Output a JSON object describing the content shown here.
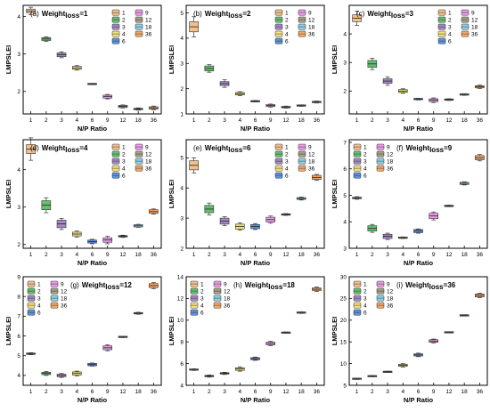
{
  "figure": {
    "xlabel": "N/P Ratio",
    "ylabel": "LMPSLEI",
    "weight_prefix": "Weight",
    "weight_subscript": "loss"
  },
  "legend": {
    "entries": [
      "1",
      "2",
      "3",
      "4",
      "6",
      "9",
      "12",
      "18",
      "36"
    ],
    "colors": [
      "#f4c08a",
      "#63c06d",
      "#a489c8",
      "#f5e17a",
      "#5b94e0",
      "#ee9ae8",
      "#a8a089",
      "#8ed3e8",
      "#f4a868"
    ]
  },
  "chart_data": [
    {
      "type": "box",
      "panel": "(a)",
      "weight": "1",
      "categories": [
        "1",
        "2",
        "3",
        "4",
        "6",
        "9",
        "12",
        "18",
        "36"
      ],
      "values": [
        4.15,
        3.4,
        2.98,
        2.63,
        2.2,
        1.86,
        1.6,
        1.53,
        1.56
      ],
      "spread": [
        0.05,
        0.04,
        0.05,
        0.04,
        0.005,
        0.04,
        0.03,
        0.02,
        0.03
      ],
      "whisker": [
        0.1,
        0.06,
        0.08,
        0.06,
        0.01,
        0.06,
        0.04,
        0.03,
        0.05
      ],
      "ylim": [
        1.4,
        4.3
      ],
      "yticks": [
        2,
        3,
        4
      ],
      "legend_position": "top-right"
    },
    {
      "type": "box",
      "panel": "(b)",
      "weight": "2",
      "categories": [
        "1",
        "2",
        "3",
        "4",
        "6",
        "9",
        "12",
        "18",
        "36"
      ],
      "values": [
        4.45,
        2.8,
        2.2,
        1.8,
        1.5,
        1.33,
        1.27,
        1.33,
        1.47
      ],
      "spread": [
        0.2,
        0.1,
        0.08,
        0.05,
        0.02,
        0.04,
        0.03,
        0.02,
        0.03
      ],
      "whisker": [
        0.4,
        0.15,
        0.15,
        0.08,
        0.03,
        0.06,
        0.04,
        0.03,
        0.04
      ],
      "ylim": [
        1.0,
        5.3
      ],
      "yticks": [
        1,
        2,
        3,
        4,
        5
      ],
      "legend_position": "top-right"
    },
    {
      "type": "box",
      "panel": "(c)",
      "weight": "3",
      "categories": [
        "1",
        "2",
        "3",
        "4",
        "6",
        "9",
        "12",
        "18",
        "36"
      ],
      "values": [
        4.55,
        2.95,
        2.35,
        2.0,
        1.72,
        1.68,
        1.7,
        1.88,
        2.15
      ],
      "spread": [
        0.12,
        0.12,
        0.08,
        0.05,
        0.02,
        0.05,
        0.02,
        0.02,
        0.04
      ],
      "whisker": [
        0.25,
        0.2,
        0.15,
        0.08,
        0.03,
        0.08,
        0.03,
        0.03,
        0.06
      ],
      "ylim": [
        1.2,
        5.0
      ],
      "yticks": [
        2,
        3,
        4
      ],
      "legend_position": "top-right"
    },
    {
      "type": "box",
      "panel": "(d)",
      "weight": "4",
      "categories": [
        "1",
        "2",
        "3",
        "4",
        "6",
        "9",
        "12",
        "18",
        "36"
      ],
      "values": [
        4.55,
        3.05,
        2.55,
        2.28,
        2.08,
        2.12,
        2.22,
        2.5,
        2.88
      ],
      "spread": [
        0.12,
        0.12,
        0.1,
        0.05,
        0.04,
        0.06,
        0.02,
        0.03,
        0.05
      ],
      "whisker": [
        0.3,
        0.2,
        0.15,
        0.08,
        0.06,
        0.1,
        0.03,
        0.04,
        0.07
      ],
      "ylim": [
        1.9,
        4.8
      ],
      "yticks": [
        2,
        3,
        4
      ],
      "legend_position": "top-right"
    },
    {
      "type": "box",
      "panel": "(e)",
      "weight": "6",
      "categories": [
        "1",
        "2",
        "3",
        "4",
        "6",
        "9",
        "12",
        "18",
        "36"
      ],
      "values": [
        4.75,
        3.3,
        2.9,
        2.72,
        2.72,
        2.95,
        3.12,
        3.65,
        4.35
      ],
      "spread": [
        0.15,
        0.12,
        0.1,
        0.08,
        0.07,
        0.08,
        0.02,
        0.03,
        0.07
      ],
      "whisker": [
        0.25,
        0.2,
        0.15,
        0.12,
        0.1,
        0.12,
        0.03,
        0.05,
        0.1
      ],
      "ylim": [
        2.0,
        5.6
      ],
      "yticks": [
        2,
        3,
        4,
        5
      ],
      "legend_position": "top-right"
    },
    {
      "type": "box",
      "panel": "(f)",
      "weight": "9",
      "categories": [
        "1",
        "2",
        "3",
        "4",
        "6",
        "9",
        "12",
        "18",
        "36"
      ],
      "values": [
        4.9,
        3.75,
        3.45,
        3.4,
        3.65,
        4.22,
        4.6,
        5.45,
        6.42
      ],
      "spread": [
        0.03,
        0.1,
        0.08,
        0.02,
        0.06,
        0.1,
        0.02,
        0.04,
        0.08
      ],
      "whisker": [
        0.05,
        0.15,
        0.12,
        0.03,
        0.08,
        0.15,
        0.03,
        0.06,
        0.12
      ],
      "ylim": [
        3.0,
        7.1
      ],
      "yticks": [
        3,
        4,
        5,
        6,
        7
      ],
      "legend_position": "top-left"
    },
    {
      "type": "box",
      "panel": "(g)",
      "weight": "12",
      "categories": [
        "1",
        "2",
        "3",
        "4",
        "6",
        "9",
        "12",
        "18",
        "36"
      ],
      "values": [
        5.1,
        4.1,
        4.0,
        4.1,
        4.55,
        5.4,
        5.95,
        7.15,
        8.55
      ],
      "spread": [
        0.03,
        0.06,
        0.06,
        0.08,
        0.06,
        0.1,
        0.02,
        0.03,
        0.1
      ],
      "whisker": [
        0.05,
        0.1,
        0.1,
        0.12,
        0.08,
        0.15,
        0.03,
        0.05,
        0.15
      ],
      "ylim": [
        3.5,
        9.0
      ],
      "yticks": [
        4,
        5,
        6,
        7,
        8,
        9
      ],
      "legend_position": "top-left"
    },
    {
      "type": "box",
      "panel": "(h)",
      "weight": "18",
      "categories": [
        "1",
        "2",
        "3",
        "4",
        "6",
        "9",
        "12",
        "18",
        "36"
      ],
      "values": [
        5.45,
        4.85,
        5.1,
        5.5,
        6.45,
        7.85,
        8.85,
        10.7,
        12.85
      ],
      "spread": [
        0.05,
        0.06,
        0.06,
        0.12,
        0.1,
        0.12,
        0.04,
        0.05,
        0.12
      ],
      "whisker": [
        0.08,
        0.1,
        0.1,
        0.2,
        0.15,
        0.2,
        0.06,
        0.08,
        0.2
      ],
      "ylim": [
        4.0,
        14.0
      ],
      "yticks": [
        4,
        6,
        8,
        10,
        12,
        14
      ],
      "legend_position": "top-left"
    },
    {
      "type": "box",
      "panel": "(i)",
      "weight": "36",
      "categories": [
        "1",
        "2",
        "3",
        "4",
        "6",
        "9",
        "12",
        "18",
        "36"
      ],
      "values": [
        6.5,
        7.1,
        8.1,
        9.6,
        12.0,
        15.2,
        17.2,
        21.1,
        25.7
      ],
      "spread": [
        0.1,
        0.1,
        0.1,
        0.25,
        0.25,
        0.3,
        0.08,
        0.1,
        0.35
      ],
      "whisker": [
        0.15,
        0.15,
        0.15,
        0.4,
        0.4,
        0.45,
        0.12,
        0.15,
        0.5
      ],
      "ylim": [
        5,
        30
      ],
      "yticks": [
        5,
        10,
        15,
        20,
        25,
        30
      ],
      "legend_position": "top-left"
    }
  ]
}
